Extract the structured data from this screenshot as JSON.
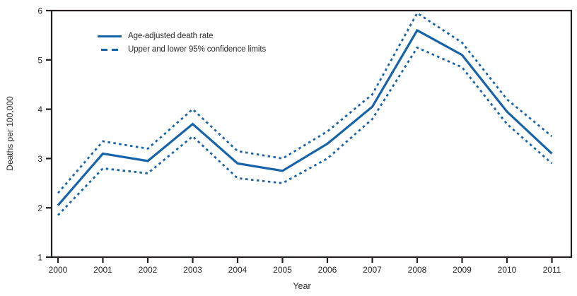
{
  "figure": {
    "colors": {
      "line": "#1663aa",
      "axis": "#231f20",
      "text": "#2a2a2a",
      "background": "#ffffff"
    },
    "y_axis": {
      "label": "Deaths per 100,000",
      "ticks": [
        6,
        5,
        4,
        3,
        2,
        1
      ]
    },
    "x_axis": {
      "label": "Year",
      "ticks": [
        "2000",
        "2001",
        "2002",
        "2003",
        "2004",
        "2005",
        "2006",
        "2007",
        "2008",
        "2009",
        "2010",
        "2011"
      ]
    },
    "legend": [
      {
        "label": "Age-adjusted death rate",
        "style": "solid"
      },
      {
        "label": "Upper and lower 95% confidence limits",
        "style": "dashed"
      }
    ]
  },
  "chart_data": {
    "type": "line",
    "title": "",
    "xlabel": "Year",
    "ylabel": "Deaths per 100,000",
    "x": [
      2000,
      2001,
      2002,
      2003,
      2004,
      2005,
      2006,
      2007,
      2008,
      2009,
      2010,
      2011
    ],
    "ylim": [
      1,
      6
    ],
    "grid": false,
    "legend_position": "top-left-inside",
    "series": [
      {
        "name": "Age-adjusted death rate",
        "style": "solid",
        "values": [
          2.05,
          3.1,
          2.95,
          3.7,
          2.9,
          2.75,
          3.3,
          4.05,
          5.6,
          5.1,
          3.95,
          3.1
        ]
      },
      {
        "name": "Upper 95% confidence limit",
        "style": "dotted",
        "values": [
          2.3,
          3.35,
          3.2,
          4.0,
          3.15,
          3.0,
          3.55,
          4.3,
          5.95,
          5.35,
          4.2,
          3.45
        ]
      },
      {
        "name": "Lower 95% confidence limit",
        "style": "dotted",
        "values": [
          1.85,
          2.8,
          2.7,
          3.45,
          2.6,
          2.5,
          3.0,
          3.8,
          5.25,
          4.85,
          3.7,
          2.9
        ]
      }
    ]
  }
}
